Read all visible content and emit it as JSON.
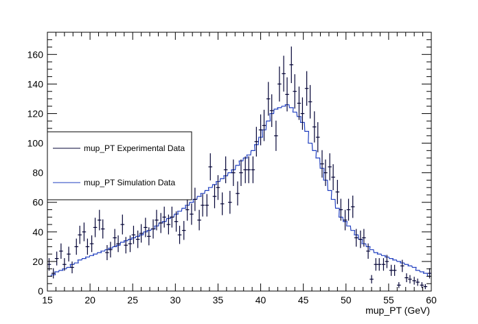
{
  "chart_data": {
    "type": "line",
    "title": "",
    "xlabel": "mup_PT (GeV)",
    "ylabel": "",
    "xlim": [
      15,
      60
    ],
    "ylim": [
      0,
      175
    ],
    "x_ticks": [
      15,
      20,
      25,
      30,
      35,
      40,
      45,
      50,
      55,
      60
    ],
    "y_ticks": [
      0,
      20,
      40,
      60,
      80,
      100,
      120,
      140,
      160
    ],
    "bin_width": 0.45,
    "grid": false,
    "legend_position": "left-middle",
    "series": [
      {
        "name": "mup_PT Experimental Data",
        "style": "points-with-errorbars",
        "color": "#000033",
        "x": [
          15.2,
          15.7,
          16.1,
          16.6,
          17.0,
          17.5,
          17.9,
          18.4,
          18.8,
          19.3,
          19.7,
          20.2,
          20.6,
          21.1,
          21.5,
          22.0,
          22.4,
          22.9,
          23.3,
          23.8,
          24.2,
          24.7,
          25.1,
          25.6,
          26.0,
          26.5,
          26.9,
          27.4,
          27.8,
          28.3,
          28.7,
          29.2,
          29.6,
          30.1,
          30.5,
          31.0,
          31.4,
          31.9,
          32.3,
          32.8,
          33.2,
          33.7,
          34.1,
          34.6,
          35.0,
          35.5,
          35.9,
          36.4,
          36.8,
          37.3,
          37.7,
          38.2,
          38.6,
          39.1,
          39.5,
          40.0,
          40.4,
          40.9,
          41.3,
          41.8,
          42.2,
          42.7,
          43.1,
          43.6,
          44.0,
          44.5,
          44.9,
          45.4,
          45.8,
          46.3,
          46.7,
          47.2,
          47.6,
          48.1,
          48.5,
          49.0,
          49.4,
          49.9,
          50.3,
          50.8,
          51.2,
          51.7,
          52.1,
          52.6,
          53.0,
          53.5,
          53.9,
          54.4,
          54.8,
          55.3,
          55.7,
          56.2,
          56.6,
          57.1,
          57.5,
          58.0,
          58.4,
          58.9,
          59.3,
          59.8
        ],
        "y": [
          18,
          12,
          22,
          27,
          18,
          25,
          16,
          30,
          38,
          40,
          30,
          32,
          43,
          48,
          42,
          26,
          28,
          36,
          32,
          45,
          31,
          32,
          38,
          35,
          39,
          43,
          37,
          42,
          48,
          46,
          50,
          45,
          50,
          47,
          38,
          41,
          55,
          52,
          62,
          48,
          58,
          58,
          84,
          64,
          70,
          59,
          82,
          60,
          80,
          66,
          80,
          82,
          82,
          82,
          101,
          109,
          112,
          130,
          122,
          105,
          140,
          147,
          133,
          153,
          135,
          127,
          120,
          137,
          128,
          111,
          104,
          86,
          80,
          84,
          77,
          67,
          55,
          48,
          55,
          57,
          36,
          35,
          36,
          27,
          8,
          18,
          18,
          18,
          20,
          14,
          14,
          4,
          17,
          9,
          8,
          7,
          6,
          4,
          3,
          12
        ]
      },
      {
        "name": "mup_PT Simulation Data",
        "style": "step",
        "color": "#1e3dbf",
        "x": [
          15.2,
          15.7,
          16.1,
          16.6,
          17.0,
          17.5,
          17.9,
          18.4,
          18.8,
          19.3,
          19.7,
          20.2,
          20.6,
          21.1,
          21.5,
          22.0,
          22.4,
          22.9,
          23.3,
          23.8,
          24.2,
          24.7,
          25.1,
          25.6,
          26.0,
          26.5,
          26.9,
          27.4,
          27.8,
          28.3,
          28.7,
          29.2,
          29.6,
          30.1,
          30.5,
          31.0,
          31.4,
          31.9,
          32.3,
          32.8,
          33.2,
          33.7,
          34.1,
          34.6,
          35.0,
          35.5,
          35.9,
          36.4,
          36.8,
          37.3,
          37.7,
          38.2,
          38.6,
          39.1,
          39.5,
          40.0,
          40.4,
          40.9,
          41.3,
          41.8,
          42.2,
          42.7,
          43.1,
          43.6,
          44.0,
          44.5,
          44.9,
          45.4,
          45.8,
          46.3,
          46.7,
          47.2,
          47.6,
          48.1,
          48.5,
          49.0,
          49.4,
          49.9,
          50.3,
          50.8,
          51.2,
          51.7,
          52.1,
          52.6,
          53.0,
          53.5,
          53.9,
          54.4,
          54.8,
          55.3,
          55.7,
          56.2,
          56.6,
          57.1,
          57.5,
          58.0,
          58.4,
          58.9,
          59.3,
          59.8
        ],
        "y": [
          10,
          11,
          13,
          14,
          15,
          16,
          18,
          19,
          21,
          22,
          23,
          24,
          25,
          26,
          27,
          28,
          29,
          30,
          31,
          33,
          34,
          35,
          36,
          37,
          38,
          40,
          41,
          42,
          44,
          46,
          47,
          49,
          50,
          52,
          54,
          56,
          58,
          60,
          62,
          64,
          66,
          68,
          70,
          72,
          74,
          76,
          78,
          80,
          82,
          85,
          88,
          90,
          92,
          95,
          99,
          104,
          109,
          115,
          120,
          123,
          124,
          125,
          126,
          124,
          121,
          118,
          114,
          108,
          100,
          95,
          90,
          83,
          75,
          68,
          62,
          56,
          50,
          47,
          44,
          41,
          38,
          35,
          32,
          30,
          28,
          26,
          25,
          24,
          23,
          22,
          21,
          20,
          19,
          18,
          17,
          16,
          14,
          13,
          12,
          10
        ]
      }
    ]
  }
}
